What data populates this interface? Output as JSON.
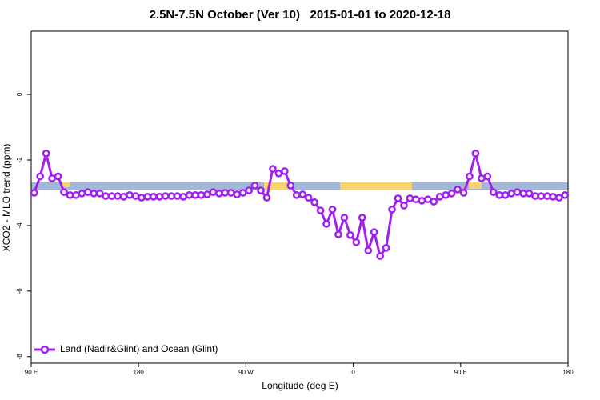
{
  "chart_data": {
    "type": "line",
    "title": "2.5N-7.5N October (Ver 10)   2015-01-01 to 2020-12-18",
    "xlabel": "Longitude (deg E)",
    "ylabel": "XCO2 - MLO trend (ppm)",
    "x": [
      92.5,
      97.5,
      102.5,
      107.5,
      112.5,
      117.5,
      122.5,
      127.5,
      132.5,
      137.5,
      142.5,
      147.5,
      152.5,
      157.5,
      162.5,
      167.5,
      172.5,
      177.5,
      182.5,
      187.5,
      192.5,
      197.5,
      202.5,
      207.5,
      212.5,
      217.5,
      222.5,
      227.5,
      232.5,
      237.5,
      242.5,
      247.5,
      252.5,
      257.5,
      262.5,
      267.5,
      272.5,
      277.5,
      282.5,
      287.5,
      292.5,
      297.5,
      302.5,
      307.5,
      312.5,
      317.5,
      322.5,
      327.5,
      332.5,
      337.5,
      342.5,
      347.5,
      352.5,
      357.5,
      362.5,
      367.5,
      372.5,
      377.5,
      382.5,
      387.5,
      392.5,
      397.5,
      402.5,
      407.5,
      412.5,
      417.5,
      422.5,
      427.5,
      432.5,
      437.5,
      442.5,
      447.5,
      452.5,
      457.5,
      462.5,
      467.5,
      472.5,
      477.5,
      482.5,
      487.5,
      492.5,
      497.5,
      502.5,
      507.5,
      512.5,
      517.5,
      522.5,
      527.5,
      532.5,
      537.5
    ],
    "series": [
      {
        "name": "Land (Nadir&Glint) and Ocean (Glint)",
        "color": "#a020f0",
        "values": [
          -3.0,
          -2.5,
          -1.8,
          -2.56,
          -2.5,
          -2.98,
          -3.07,
          -3.07,
          -3.02,
          -2.98,
          -3.02,
          -3.02,
          -3.1,
          -3.1,
          -3.1,
          -3.12,
          -3.07,
          -3.1,
          -3.15,
          -3.12,
          -3.12,
          -3.12,
          -3.1,
          -3.1,
          -3.1,
          -3.12,
          -3.07,
          -3.07,
          -3.07,
          -3.05,
          -2.98,
          -3.02,
          -3.0,
          -3.0,
          -3.05,
          -3.0,
          -2.93,
          -2.78,
          -2.93,
          -3.15,
          -2.27,
          -2.41,
          -2.34,
          -2.78,
          -3.07,
          -3.05,
          -3.15,
          -3.29,
          -3.54,
          -3.95,
          -3.51,
          -4.27,
          -3.76,
          -4.29,
          -4.51,
          -3.76,
          -4.76,
          -4.2,
          -4.93,
          -4.68,
          -3.51,
          -3.17,
          -3.39,
          -3.17,
          -3.2,
          -3.24,
          -3.2,
          -3.27,
          -3.12,
          -3.07,
          -3.02,
          -2.9,
          -3.0,
          -2.5,
          -1.8,
          -2.56,
          -2.5,
          -2.98,
          -3.07,
          -3.07,
          -3.02,
          -2.98,
          -3.02,
          -3.02,
          -3.1,
          -3.1,
          -3.1,
          -3.12,
          -3.15,
          -3.07
        ]
      }
    ],
    "xlim": [
      90,
      540
    ],
    "xticks": [
      {
        "value": 90,
        "label": "90 E"
      },
      180,
      {
        "value": 270,
        "label": "90 W"
      },
      {
        "value": 360,
        "label": "0"
      },
      {
        "value": 450,
        "label": "90 E"
      },
      {
        "value": 540,
        "label": "180"
      }
    ],
    "ylim": [
      -8.2,
      1.93
    ],
    "yticks": [
      0,
      -2,
      -4,
      -6,
      -8
    ],
    "legend": "bottom-left"
  }
}
